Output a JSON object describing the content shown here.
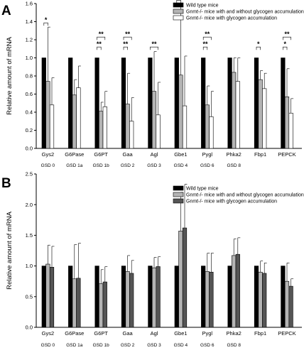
{
  "chart_data": [
    {
      "panel": "A",
      "type": "bar",
      "ylabel": "Relative amount of mRNA",
      "ylim": [
        0,
        1.6
      ],
      "yticks": [
        "0.0",
        "0.2",
        "0.4",
        "0.6",
        "0.8",
        "1.0",
        "1.2",
        "1.4",
        "1.6"
      ],
      "categories": [
        "Gys2",
        "G6Pase",
        "G6PT",
        "Gaa",
        "Agl",
        "Gbe1",
        "Pygl",
        "Phka2",
        "Fbp1",
        "PEPCK"
      ],
      "sublabels": [
        "GSD 0",
        "GSD 1a",
        "GSD 1b",
        "GSD 2",
        "GSD 3",
        "GSD 4",
        "GSD 6",
        "GSD 8",
        "",
        ""
      ],
      "series": [
        {
          "name": "Wild type mice",
          "color": "#000000",
          "values": [
            1,
            1,
            1,
            1,
            1,
            1,
            1,
            1,
            1,
            1
          ],
          "errors": [
            0,
            0,
            0,
            0,
            0,
            0,
            0,
            0,
            0,
            0
          ]
        },
        {
          "name": "Gnmt-/- mice with and without glycogen accumulation",
          "color": "#b4b4b4",
          "values": [
            0.74,
            0.59,
            0.41,
            0.49,
            0.63,
            0.81,
            0.48,
            0.84,
            0.76,
            0.57
          ],
          "errors": [
            0.6,
            0.17,
            0.1,
            0.34,
            0.44,
            0.78,
            0.21,
            0.16,
            0.1,
            0.31
          ]
        },
        {
          "name": "Gnmt-/- mice with glycogen accumulation",
          "color": "#ffffff",
          "values": [
            0.48,
            0.67,
            0.46,
            0.3,
            0.37,
            0.47,
            0.35,
            0.74,
            0.66,
            0.39
          ],
          "errors": [
            0.3,
            0.24,
            0.17,
            0.26,
            0.36,
            0.55,
            0.28,
            0.26,
            0.17,
            0.16
          ]
        }
      ],
      "significance": [
        {
          "category": 0,
          "from": 0,
          "to": 1,
          "label": "*"
        },
        {
          "category": 2,
          "from": 0,
          "to": 1,
          "label": "**"
        },
        {
          "category": 2,
          "from": 0,
          "to": 2,
          "label": "**"
        },
        {
          "category": 3,
          "from": 0,
          "to": 1,
          "label": "**"
        },
        {
          "category": 3,
          "from": 0,
          "to": 2,
          "label": "**"
        },
        {
          "category": 4,
          "from": 0,
          "to": 2,
          "label": "**"
        },
        {
          "category": 5,
          "from": 0,
          "to": 1,
          "label": "*"
        },
        {
          "category": 6,
          "from": 0,
          "to": 1,
          "label": "**"
        },
        {
          "category": 6,
          "from": 0,
          "to": 2,
          "label": "**"
        },
        {
          "category": 8,
          "from": 0,
          "to": 1,
          "label": "*"
        },
        {
          "category": 9,
          "from": 0,
          "to": 1,
          "label": "*"
        },
        {
          "category": 9,
          "from": 0,
          "to": 2,
          "label": "**"
        }
      ]
    },
    {
      "panel": "B",
      "type": "bar",
      "ylabel": "Relative amount of mRNA",
      "ylim": [
        0,
        2.5
      ],
      "yticks": [
        "0.0",
        "0.5",
        "1.0",
        "1.5",
        "2.0",
        "2.5"
      ],
      "categories": [
        "Gys2",
        "G6Pase",
        "G6PT",
        "Gaa",
        "Agl",
        "Gbe1",
        "Pygl",
        "Phka2",
        "Fbp1",
        "PEPCK"
      ],
      "sublabels": [
        "GSD 0",
        "GSD 1a",
        "GSD 1b",
        "GSD 2",
        "GSD 3",
        "GSD 4",
        "GSD 6",
        "GSD 8",
        "",
        ""
      ],
      "series": [
        {
          "name": "Wild type mice",
          "color": "#000000",
          "values": [
            1,
            1,
            1,
            1,
            1,
            1,
            1,
            1,
            1,
            1
          ],
          "errors": [
            0,
            0,
            0,
            0,
            0,
            0,
            0,
            0,
            0,
            0
          ]
        },
        {
          "name": "Gnmt-/- mice with and without glycogen accumulation",
          "color": "#b4b4b4",
          "values": [
            1.03,
            0.79,
            0.71,
            0.91,
            0.97,
            1.57,
            0.91,
            1.17,
            0.9,
            0.75
          ],
          "errors": [
            0.31,
            0.56,
            0.23,
            0.26,
            0.17,
            0.63,
            0.3,
            0.27,
            0.18,
            0.3
          ]
        },
        {
          "name": "Gnmt-/- mice with glycogen accumulation",
          "color": "#555555",
          "values": [
            0.98,
            0.8,
            0.74,
            0.88,
            0.99,
            1.62,
            0.9,
            1.19,
            0.88,
            0.67
          ],
          "errors": [
            0.34,
            0.57,
            0.25,
            0.21,
            0.16,
            0.71,
            0.31,
            0.27,
            0.17,
            0.12
          ]
        }
      ]
    }
  ]
}
